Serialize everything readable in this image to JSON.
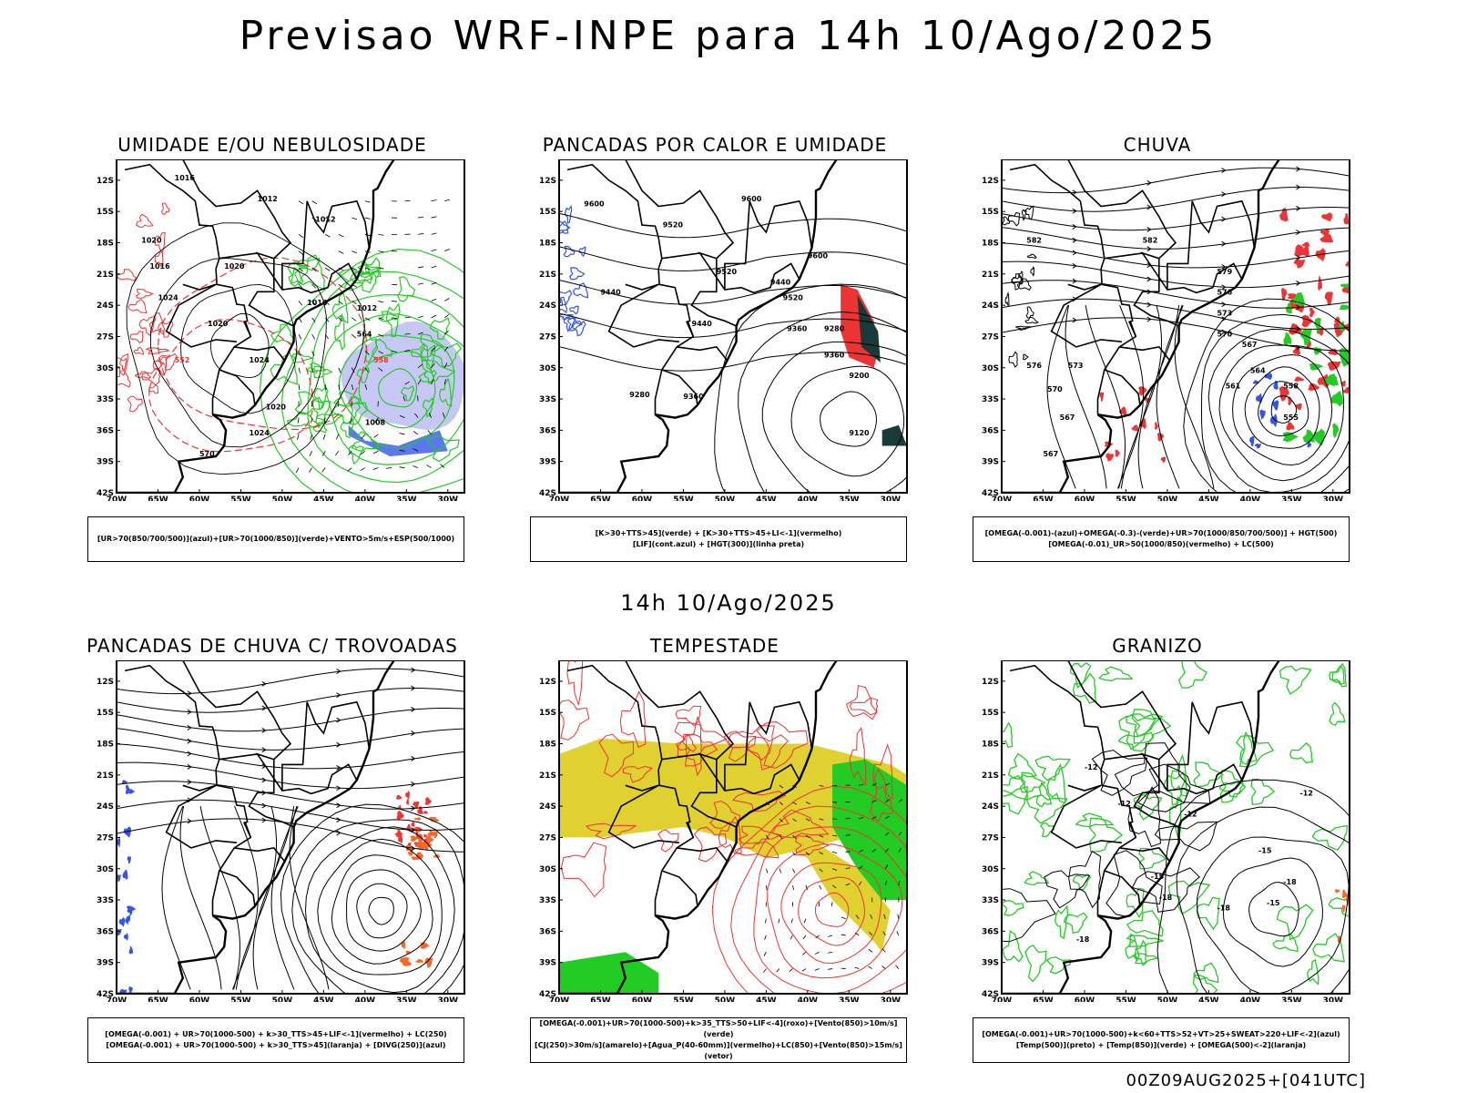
{
  "main_title": "Previsao WRF-INPE  para 14h 10/Ago/2025",
  "mid_title": "14h 10/Ago/2025",
  "footer_stamp": "00Z09AUG2025+[041UTC]",
  "lat_labels": [
    "12S",
    "15S",
    "18S",
    "21S",
    "24S",
    "27S",
    "30S",
    "33S",
    "36S",
    "39S",
    "42S"
  ],
  "lon_labels": [
    "70W",
    "65W",
    "60W",
    "55W",
    "50W",
    "45W",
    "40W",
    "35W",
    "30W"
  ],
  "colors": {
    "blue": "#3355ee",
    "green": "#22cc22",
    "red": "#ee3333",
    "orange": "#ff6622",
    "yellow": "#e0d030",
    "dark": "#1a3a3a",
    "lavender": "#9999ee"
  },
  "panels": [
    {
      "id": "umidade",
      "title": "UMIDADE E/OU NEBULOSIDADE",
      "legend_lines": [
        "[UR>70(850/700/500)](azul)+[UR>70(1000/850)](verde)+VENTO>5m/s+ESP(500/1000)"
      ],
      "contour_labels": [
        "1016",
        "1012",
        "1012",
        "1020",
        "1016",
        "1020",
        "1024",
        "1020",
        "1016",
        "1012",
        "1008",
        "1024",
        "1020",
        "1024",
        "570",
        "564",
        "558",
        "552"
      ]
    },
    {
      "id": "pancadas-calor",
      "title": "PANCADAS POR CALOR E UMIDADE",
      "legend_lines": [
        "[K>30+TTS>45](verde) + [K>30+TTS>45+LI<-1](vermelho)",
        "[LIF](cont.azul) + [HGT(300)](linha preta)"
      ],
      "contour_labels": [
        "9600",
        "9600",
        "9520",
        "9600",
        "9520",
        "9440",
        "9520",
        "9440",
        "9440",
        "9360",
        "9280",
        "9360",
        "9280",
        "9200",
        "9120",
        "9360"
      ]
    },
    {
      "id": "chuva",
      "title": "CHUVA",
      "legend_lines": [
        "[OMEGA(-0.001)-(azul)+OMEGA(-0.3)-(verde)+UR>70(1000/850/700/500)] + HGT(500)",
        "[OMEGA(-0.01)_UR>50(1000/850)(vermelho) + LC(500)"
      ],
      "contour_labels": [
        "582",
        "582",
        "579",
        "576",
        "573",
        "570",
        "567",
        "564",
        "561",
        "558",
        "555",
        "570",
        "573",
        "567",
        "567",
        "576"
      ]
    },
    {
      "id": "trovoadas",
      "title": "PANCADAS DE CHUVA C/ TROVOADAS",
      "legend_lines": [
        "[OMEGA(-0.001) + UR>70(1000-500) + k>30_TTS>45+LIF<-1](vermelho) + LC(250)",
        "[OMEGA(-0.001) + UR>70(1000-500) + k>30_TTS>45](laranja) + [DIVG(250)](azul)"
      ],
      "contour_labels": []
    },
    {
      "id": "tempestade",
      "title": "TEMPESTADE",
      "legend_lines": [
        "[OMEGA(-0.001)+UR>70(1000-500)+k>35_TTS>50+LIF<-4](roxo)+[Vento(850)>10m/s](verde)",
        "[CJ(250)>30m/s](amarelo)+[Agua_P(40-60mm)](vermelho)+LC(850)+[Vento(850)>15m/s](vetor)"
      ],
      "contour_labels": []
    },
    {
      "id": "granizo",
      "title": "GRANIZO",
      "legend_lines": [
        "[OMEGA(-0.001)+UR>70(1000-500)+k<60+TTS>52+VT>25+SWEAT>220+LIF<-2](azul)",
        "[Temp(500)](preto) + [Temp(850)](verde) + [OMEGA(500)<-2](laranja)"
      ],
      "contour_labels": [
        "-12",
        "-12",
        "-12",
        "-15",
        "-15",
        "-18",
        "-18",
        "-15",
        "-18",
        "-18",
        "-12"
      ]
    }
  ]
}
